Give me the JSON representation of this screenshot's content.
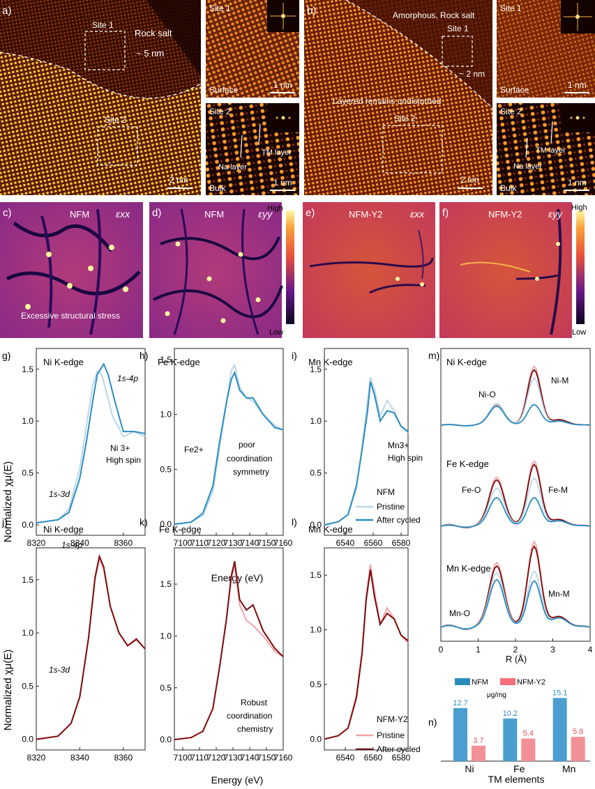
{
  "panels": {
    "a": {
      "letter": "a)",
      "site1": "Site 1",
      "site2": "Site 2",
      "rock_salt": "Rock salt",
      "thickness": "~ 5 nm",
      "scale": "2 nm"
    },
    "a1": {
      "site": "Site 1",
      "region": "Surface",
      "scale": "1 nm"
    },
    "a2": {
      "site": "Site 2",
      "region": "Bulk",
      "scale": "1 nm",
      "tm_layer": "TM layer",
      "na_layer": "Na layer"
    },
    "b": {
      "letter": "b)",
      "title": "Amorphous, Rock salt",
      "site1": "Site 1",
      "site2": "Site 2",
      "thickness": "~ 2 nm",
      "layered": "Layered remains undisturbed",
      "scale": "2 nm"
    },
    "b1": {
      "site": "Site 1",
      "region": "Surface",
      "scale": "1 nm"
    },
    "b2": {
      "site": "Site 2",
      "region": "Bulk",
      "scale": "1 nm",
      "tm_layer": "TM layer",
      "na_layer": "Na layer"
    },
    "c": {
      "letter": "c)",
      "sample": "NFM",
      "strain": "εxx",
      "note": "Excessive structural stress"
    },
    "d": {
      "letter": "d)",
      "sample": "NFM",
      "strain": "εyy"
    },
    "e": {
      "letter": "e)",
      "sample": "NFM-Y2",
      "strain": "εxx"
    },
    "f": {
      "letter": "f)",
      "sample": "NFM-Y2",
      "strain": "εyy"
    },
    "colorbar": {
      "high": "High",
      "low": "Low"
    }
  },
  "xanes": {
    "ylabel": "Normalized χμ(E)",
    "xlabel": "Energy (eV)",
    "g": {
      "letter": "g)",
      "edge": "Ni K-edge",
      "a1": "1s-4p",
      "a2": "1s-3d",
      "a3": "Ni 3+",
      "a4": "High spin"
    },
    "h": {
      "letter": "h)",
      "edge": "Fe K-edge",
      "a1": "Fe2+",
      "a2": "poor",
      "a3": "coordination",
      "a4": "symmetry"
    },
    "i": {
      "letter": "i)",
      "edge": "Mn K-edge",
      "a1": "Mn3+",
      "a2": "High spin",
      "legend_title": "NFM",
      "leg1": "Pristine",
      "leg2": "After cycled"
    },
    "j": {
      "letter": "j)",
      "edge": "Ni K-edge",
      "a1": "1s-4p",
      "a2": "1s-3d"
    },
    "k": {
      "letter": "k)",
      "edge": "Fe K-edge",
      "a1": "Robust",
      "a2": "coordination",
      "a3": "chemistry"
    },
    "l": {
      "letter": "l)",
      "edge": "Mn K-edge",
      "legend_title": "NFM-Y2",
      "leg1": "Pristine",
      "leg2": "After cycled"
    },
    "colors": {
      "nfm_pristine": "#b9d7ea",
      "nfm_cycled": "#2b8cbe",
      "y2_pristine": "#f4a3a8",
      "y2_cycled": "#7b0a0a"
    }
  },
  "exafs": {
    "letter": "m)",
    "xlabel": "R (Å)",
    "ni": {
      "edge": "Ni K-edge",
      "m_o": "Ni-O",
      "m_m": "Ni-M"
    },
    "fe": {
      "edge": "Fe K-edge",
      "m_o": "Fe-O",
      "m_m": "Fe-M"
    },
    "mn": {
      "edge": "Mn K-edge",
      "m_o": "Mn-O",
      "m_m": "Mn-M"
    }
  },
  "chart_data": [
    {
      "type": "line",
      "panel": "g",
      "xlim": [
        8320,
        8370
      ],
      "ylim": [
        -0.1,
        1.7
      ],
      "xticks": [
        8320,
        8340,
        8360
      ],
      "yticks": [
        0.0,
        0.5,
        1.0,
        1.5
      ],
      "series": [
        {
          "name": "Pristine",
          "x": [
            8320,
            8330,
            8335,
            8340,
            8343,
            8346,
            8348,
            8350,
            8352,
            8355,
            8360,
            8365,
            8370
          ],
          "y": [
            0.02,
            0.05,
            0.15,
            0.55,
            0.95,
            1.35,
            1.48,
            1.45,
            1.3,
            1.05,
            0.85,
            0.9,
            0.85
          ]
        },
        {
          "name": "After cycled",
          "x": [
            8320,
            8330,
            8335,
            8340,
            8343,
            8346,
            8348,
            8351,
            8353,
            8356,
            8360,
            8365,
            8370
          ],
          "y": [
            0.02,
            0.05,
            0.12,
            0.45,
            0.8,
            1.2,
            1.45,
            1.55,
            1.45,
            1.2,
            0.9,
            0.9,
            0.88
          ]
        }
      ]
    },
    {
      "type": "line",
      "panel": "h",
      "xlim": [
        7095,
        7160
      ],
      "ylim": [
        -0.1,
        1.6
      ],
      "xticks": [
        7100,
        7110,
        7120,
        7130,
        7140,
        7150,
        7160
      ],
      "yticks": [
        0.0,
        0.5,
        1.0,
        1.5
      ],
      "series": [
        {
          "name": "Pristine",
          "x": [
            7095,
            7105,
            7112,
            7118,
            7122,
            7126,
            7129,
            7131,
            7134,
            7138,
            7142,
            7148,
            7155,
            7160
          ],
          "y": [
            0.0,
            0.02,
            0.08,
            0.3,
            0.7,
            1.1,
            1.4,
            1.45,
            1.25,
            1.15,
            1.12,
            1.0,
            0.9,
            0.86
          ]
        },
        {
          "name": "After cycled",
          "x": [
            7095,
            7105,
            7112,
            7118,
            7122,
            7126,
            7129,
            7131,
            7134,
            7138,
            7142,
            7148,
            7155,
            7160
          ],
          "y": [
            0.0,
            0.02,
            0.1,
            0.35,
            0.75,
            1.1,
            1.32,
            1.38,
            1.22,
            1.15,
            1.15,
            1.0,
            0.88,
            0.86
          ]
        }
      ]
    },
    {
      "type": "line",
      "panel": "i",
      "xlim": [
        6525,
        6585
      ],
      "ylim": [
        -0.1,
        1.7
      ],
      "xticks": [
        6540,
        6560,
        6580
      ],
      "yticks": [
        0.0,
        0.5,
        1.0,
        1.5
      ],
      "series": [
        {
          "name": "Pristine",
          "x": [
            6525,
            6535,
            6542,
            6548,
            6552,
            6556,
            6558,
            6561,
            6565,
            6570,
            6575,
            6580,
            6585
          ],
          "y": [
            0.0,
            0.03,
            0.1,
            0.35,
            0.75,
            1.2,
            1.42,
            1.3,
            1.05,
            1.2,
            1.1,
            0.95,
            0.88
          ]
        },
        {
          "name": "After cycled",
          "x": [
            6525,
            6535,
            6542,
            6548,
            6552,
            6556,
            6558,
            6561,
            6565,
            6570,
            6575,
            6580,
            6585
          ],
          "y": [
            0.0,
            0.03,
            0.1,
            0.38,
            0.72,
            1.1,
            1.38,
            1.25,
            1.0,
            1.1,
            1.08,
            0.95,
            0.9
          ]
        }
      ]
    },
    {
      "type": "line",
      "panel": "j",
      "xlim": [
        8320,
        8370
      ],
      "ylim": [
        -0.1,
        1.8
      ],
      "xticks": [
        8320,
        8340,
        8360
      ],
      "yticks": [
        0.0,
        0.5,
        1.0,
        1.5
      ],
      "series": [
        {
          "name": "Pristine",
          "x": [
            8320,
            8330,
            8336,
            8340,
            8344,
            8347,
            8349,
            8351,
            8354,
            8358,
            8362,
            8366,
            8370
          ],
          "y": [
            0.0,
            0.03,
            0.15,
            0.4,
            0.95,
            1.5,
            1.7,
            1.6,
            1.25,
            1.0,
            0.88,
            0.95,
            0.85
          ]
        },
        {
          "name": "After cycled",
          "x": [
            8320,
            8330,
            8336,
            8340,
            8344,
            8347,
            8349,
            8351,
            8354,
            8358,
            8362,
            8366,
            8370
          ],
          "y": [
            0.0,
            0.03,
            0.15,
            0.4,
            0.95,
            1.52,
            1.72,
            1.62,
            1.25,
            1.0,
            0.88,
            0.94,
            0.85
          ]
        }
      ]
    },
    {
      "type": "line",
      "panel": "k",
      "xlim": [
        7095,
        7160
      ],
      "ylim": [
        -0.1,
        1.85
      ],
      "xticks": [
        7100,
        7110,
        7120,
        7130,
        7140,
        7150,
        7160
      ],
      "yticks": [
        0.0,
        0.5,
        1.0,
        1.5
      ],
      "series": [
        {
          "name": "Pristine",
          "x": [
            7095,
            7105,
            7112,
            7118,
            7122,
            7126,
            7129,
            7131,
            7134,
            7138,
            7142,
            7148,
            7155,
            7160
          ],
          "y": [
            0.0,
            0.02,
            0.08,
            0.3,
            0.7,
            1.15,
            1.55,
            1.68,
            1.3,
            1.15,
            1.1,
            1.0,
            0.85,
            0.8
          ]
        },
        {
          "name": "After cycled",
          "x": [
            7095,
            7105,
            7112,
            7118,
            7122,
            7126,
            7129,
            7131,
            7134,
            7138,
            7142,
            7148,
            7155,
            7160
          ],
          "y": [
            0.0,
            0.02,
            0.08,
            0.3,
            0.7,
            1.15,
            1.58,
            1.72,
            1.35,
            1.25,
            1.3,
            1.05,
            0.88,
            0.8
          ]
        }
      ]
    },
    {
      "type": "line",
      "panel": "l",
      "xlim": [
        6525,
        6585
      ],
      "ylim": [
        -0.1,
        1.75
      ],
      "xticks": [
        6540,
        6560,
        6580
      ],
      "yticks": [
        0.0,
        0.5,
        1.0,
        1.5
      ],
      "series": [
        {
          "name": "Pristine",
          "x": [
            6525,
            6535,
            6542,
            6548,
            6552,
            6555,
            6558,
            6561,
            6565,
            6570,
            6575,
            6580,
            6585
          ],
          "y": [
            0.0,
            0.03,
            0.1,
            0.4,
            0.8,
            1.3,
            1.6,
            1.35,
            1.05,
            1.2,
            1.1,
            0.95,
            0.88
          ]
        },
        {
          "name": "After cycled",
          "x": [
            6525,
            6535,
            6542,
            6548,
            6552,
            6555,
            6558,
            6561,
            6565,
            6570,
            6575,
            6580,
            6585
          ],
          "y": [
            0.0,
            0.03,
            0.1,
            0.38,
            0.78,
            1.28,
            1.55,
            1.3,
            1.05,
            1.15,
            1.1,
            0.95,
            0.9
          ]
        }
      ]
    },
    {
      "type": "bar",
      "panel": "n",
      "categories": [
        "Ni",
        "Fe",
        "Mn"
      ],
      "xlabel": "TM elements",
      "unit": "μg/mg",
      "series": [
        {
          "name": "NFM",
          "values": [
            12.7,
            10.2,
            15.1
          ]
        },
        {
          "name": "NFM-Y2",
          "values": [
            3.7,
            5.4,
            5.8
          ]
        }
      ]
    }
  ],
  "bar_labels": {
    "letter": "n)",
    "unit": "μg/mg",
    "xlabel": "TM elements",
    "leg_nfm": "NFM",
    "leg_y2": "NFM-Y2",
    "cats": [
      "Ni",
      "Fe",
      "Mn"
    ],
    "nfm": [
      "12.7",
      "10.2",
      "15.1"
    ],
    "y2": [
      "3.7",
      "5.4",
      "5.8"
    ]
  },
  "exafs_ticks": [
    "0",
    "1",
    "2",
    "3",
    "4"
  ]
}
